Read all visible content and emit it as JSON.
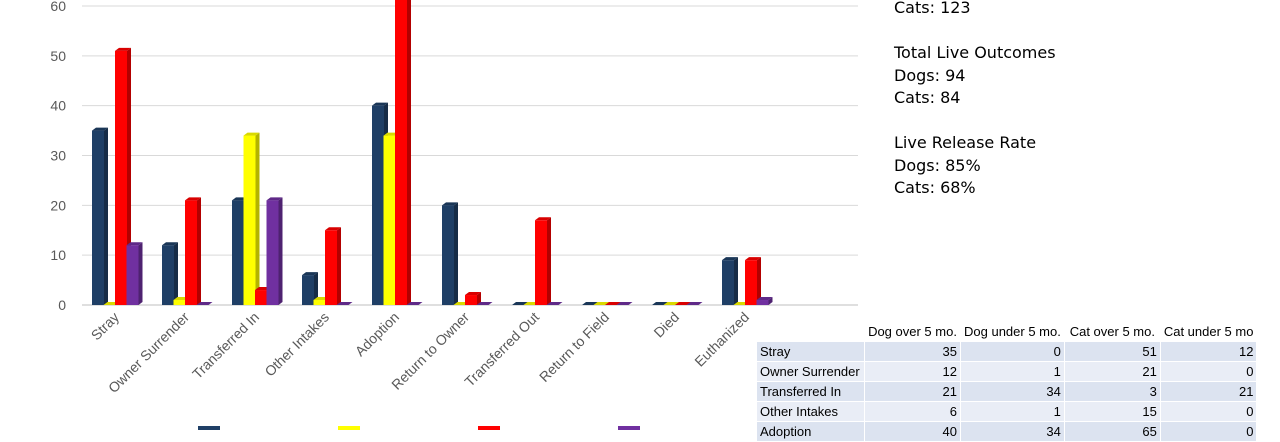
{
  "chart_data": {
    "type": "bar",
    "categories": [
      "Stray",
      "Owner Surrender",
      "Transferred In",
      "Other Intakes",
      "Adoption",
      "Return to Owner",
      "Transferred Out",
      "Return to Field",
      "Died",
      "Euthanized"
    ],
    "series": [
      {
        "values": [
          35,
          12,
          21,
          6,
          40,
          20,
          0,
          0,
          0,
          9
        ],
        "color": "#1f3f66"
      },
      {
        "values": [
          0,
          1,
          34,
          1,
          34,
          0,
          0,
          0,
          0,
          0
        ],
        "color": "#ffff00"
      },
      {
        "values": [
          51,
          21,
          3,
          15,
          65,
          2,
          17,
          0,
          0,
          9
        ],
        "color": "#ff0000"
      },
      {
        "values": [
          12,
          0,
          21,
          0,
          0,
          0,
          0,
          0,
          0,
          1
        ],
        "color": "#7030a0"
      }
    ],
    "ylim": [
      0,
      60
    ],
    "yticks": [
      0,
      10,
      20,
      30,
      40,
      50,
      60
    ],
    "grid": true,
    "style": "3d-columns"
  },
  "stats": {
    "cats_total": "Cats: 123",
    "live_title": "Total Live Outcomes",
    "live_dogs": "Dogs: 94",
    "live_cats": "Cats: 84",
    "rate_title": "Live Release Rate",
    "rate_dogs": "Dogs: 85%",
    "rate_cats": "Cats: 68%"
  },
  "table": {
    "headers": [
      "",
      "Dog over 5 mo.",
      "Dog under 5 mo.",
      "Cat over 5 mo.",
      "Cat under 5 mo"
    ],
    "rows": [
      [
        "Stray",
        "35",
        "0",
        "51",
        "12"
      ],
      [
        "Owner Surrender",
        "12",
        "1",
        "21",
        "0"
      ],
      [
        "Transferred In",
        "21",
        "34",
        "3",
        "21"
      ],
      [
        "Other Intakes",
        "6",
        "1",
        "15",
        "0"
      ],
      [
        "Adoption",
        "40",
        "34",
        "65",
        "0"
      ]
    ]
  }
}
